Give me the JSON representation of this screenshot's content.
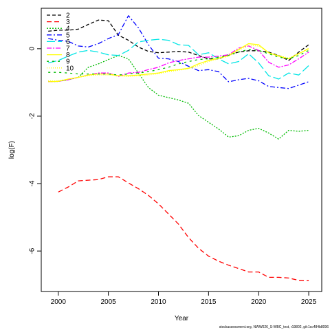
{
  "chart_data": {
    "type": "line",
    "title": "",
    "xlabel": "Year",
    "ylabel": "log(F)",
    "xlim": [
      1998.3,
      2026.3
    ],
    "ylim": [
      -7.2,
      1.2
    ],
    "xticks": [
      2000,
      2005,
      2010,
      2015,
      2020,
      2025
    ],
    "yticks": [
      0,
      -2,
      -4,
      -6
    ],
    "legend_position": "top-left",
    "grid": false,
    "series": [
      {
        "name": "2",
        "color": "#000000",
        "dash": "5,3",
        "x": [
          1999,
          2000,
          2001,
          2002,
          2003,
          2004,
          2005,
          2006,
          2007,
          2008,
          2009,
          2010,
          2011,
          2012,
          2013,
          2014,
          2015,
          2016,
          2017,
          2018,
          2019,
          2020,
          2021,
          2022,
          2023,
          2024,
          2025
        ],
        "y": [
          0.52,
          0.55,
          0.55,
          0.58,
          0.72,
          0.85,
          0.83,
          0.4,
          0.25,
          0.05,
          -0.08,
          -0.12,
          -0.1,
          -0.08,
          -0.1,
          -0.2,
          -0.3,
          -0.3,
          -0.18,
          -0.1,
          -0.06,
          -0.06,
          -0.1,
          -0.2,
          -0.35,
          -0.1,
          0.12
        ]
      },
      {
        "name": "3",
        "color": "#ff0000",
        "dash": "7,4",
        "x": [
          2000,
          2001,
          2002,
          2003,
          2004,
          2005,
          2006,
          2007,
          2008,
          2009,
          2010,
          2011,
          2012,
          2013,
          2014,
          2015,
          2016,
          2017,
          2018,
          2019,
          2020,
          2021,
          2022,
          2023,
          2024,
          2025
        ],
        "y": [
          -4.25,
          -4.1,
          -3.92,
          -3.9,
          -3.88,
          -3.8,
          -3.8,
          -3.98,
          -4.15,
          -4.35,
          -4.6,
          -4.9,
          -5.2,
          -5.6,
          -5.92,
          -6.15,
          -6.3,
          -6.42,
          -6.52,
          -6.62,
          -6.62,
          -6.78,
          -6.78,
          -6.8,
          -6.87,
          -6.88
        ]
      },
      {
        "name": "4",
        "color": "#00bb00",
        "dash": "2,2",
        "x": [
          1999,
          2000,
          2001,
          2002,
          2003,
          2004,
          2005,
          2006,
          2007,
          2008,
          2009,
          2010,
          2011,
          2012,
          2013,
          2014,
          2015,
          2016,
          2017,
          2018,
          2019,
          2020,
          2021,
          2022,
          2023,
          2024,
          2025
        ],
        "y": [
          -0.98,
          -0.97,
          -0.92,
          -0.85,
          -0.55,
          -0.45,
          -0.32,
          -0.2,
          -0.3,
          -0.72,
          -1.15,
          -1.38,
          -1.45,
          -1.52,
          -1.62,
          -1.98,
          -2.18,
          -2.38,
          -2.62,
          -2.58,
          -2.42,
          -2.36,
          -2.5,
          -2.68,
          -2.42,
          -2.45,
          -2.42
        ]
      },
      {
        "name": "5",
        "color": "#0000ff",
        "dash": "7,3,2,3",
        "x": [
          1999,
          2000,
          2001,
          2002,
          2003,
          2004,
          2005,
          2006,
          2007,
          2008,
          2009,
          2010,
          2011,
          2012,
          2013,
          2014,
          2015,
          2016,
          2017,
          2018,
          2019,
          2020,
          2021,
          2022,
          2023,
          2024,
          2025
        ],
        "y": [
          0.3,
          0.25,
          0.22,
          0.08,
          0.05,
          0.15,
          0.3,
          0.42,
          0.98,
          0.62,
          0.12,
          -0.28,
          -0.3,
          -0.38,
          -0.52,
          -0.65,
          -0.62,
          -0.68,
          -0.98,
          -0.92,
          -0.88,
          -0.95,
          -1.12,
          -1.15,
          -1.18,
          -1.08,
          -0.98
        ]
      },
      {
        "name": "6",
        "color": "#00e5e5",
        "dash": "12,4",
        "x": [
          1999,
          2000,
          2001,
          2002,
          2003,
          2004,
          2005,
          2006,
          2007,
          2008,
          2009,
          2010,
          2011,
          2012,
          2013,
          2014,
          2015,
          2016,
          2017,
          2018,
          2019,
          2020,
          2021,
          2022,
          2023,
          2024,
          2025
        ],
        "y": [
          -0.42,
          -0.35,
          -0.22,
          -0.1,
          -0.05,
          -0.1,
          -0.18,
          -0.2,
          -0.05,
          0.2,
          0.25,
          0.28,
          0.25,
          0.12,
          0.1,
          -0.18,
          -0.12,
          -0.3,
          -0.45,
          -0.38,
          -0.15,
          -0.42,
          -0.8,
          -0.9,
          -0.72,
          -0.78,
          -0.5
        ]
      },
      {
        "name": "7",
        "color": "#ff00ff",
        "dash": "7,2,2,2",
        "x": [
          1999,
          2000,
          2001,
          2002,
          2003,
          2004,
          2005,
          2006,
          2007,
          2008,
          2009,
          2010,
          2011,
          2012,
          2013,
          2014,
          2015,
          2016,
          2017,
          2018,
          2019,
          2020,
          2021,
          2022,
          2023,
          2024,
          2025
        ],
        "y": [
          -0.98,
          -0.97,
          -0.92,
          -0.85,
          -0.78,
          -0.72,
          -0.72,
          -0.82,
          -0.72,
          -0.7,
          -0.62,
          -0.55,
          -0.42,
          -0.35,
          -0.3,
          -0.25,
          -0.25,
          -0.22,
          -0.18,
          0.02,
          0.08,
          -0.05,
          -0.4,
          -0.55,
          -0.48,
          -0.3,
          -0.1
        ]
      },
      {
        "name": "8",
        "color": "#ffff00",
        "dash": "",
        "x": [
          1999,
          2000,
          2001,
          2002,
          2003,
          2004,
          2005,
          2006,
          2007,
          2008,
          2009,
          2010,
          2011,
          2012,
          2013,
          2014,
          2015,
          2016,
          2017,
          2018,
          2019,
          2020,
          2021,
          2022,
          2023,
          2024,
          2025
        ],
        "y": [
          -0.98,
          -0.97,
          -0.9,
          -0.85,
          -0.78,
          -0.75,
          -0.75,
          -0.8,
          -0.8,
          -0.78,
          -0.75,
          -0.72,
          -0.65,
          -0.62,
          -0.58,
          -0.45,
          -0.35,
          -0.28,
          -0.2,
          -0.02,
          0.15,
          0.12,
          -0.12,
          -0.22,
          -0.3,
          -0.15,
          0.0
        ]
      },
      {
        "name": "9",
        "color": "#00bb00",
        "dash": "3,5",
        "x": [
          1999,
          2000,
          2001,
          2002,
          2003,
          2004,
          2005,
          2006,
          2007,
          2008,
          2009,
          2010,
          2011,
          2012,
          2013,
          2014,
          2015,
          2016,
          2017,
          2018,
          2019,
          2020,
          2021,
          2022,
          2023,
          2024,
          2025
        ],
        "y": [
          -0.7,
          -0.7,
          -0.72,
          -0.75,
          -0.75,
          -0.75,
          -0.75,
          -0.78,
          -0.75,
          -0.72,
          -0.68,
          -0.62,
          -0.55,
          -0.45,
          -0.38,
          -0.32,
          -0.3,
          -0.25,
          -0.2,
          -0.1,
          -0.02,
          -0.05,
          -0.15,
          -0.25,
          -0.3,
          -0.2,
          -0.05
        ]
      },
      {
        "name": "10",
        "color": "#ffff00",
        "dash": "1,2",
        "x": [
          1999,
          2000,
          2001,
          2002,
          2003,
          2004,
          2005,
          2006,
          2007,
          2008,
          2009,
          2010,
          2011,
          2012,
          2013,
          2014,
          2015,
          2016,
          2017,
          2018,
          2019,
          2020,
          2021,
          2022,
          2023,
          2024,
          2025
        ],
        "y": [
          -0.95,
          -0.95,
          -0.9,
          -0.85,
          -0.8,
          -0.78,
          -0.78,
          -0.8,
          -0.82,
          -0.8,
          -0.78,
          -0.74,
          -0.68,
          -0.64,
          -0.6,
          -0.5,
          -0.38,
          -0.3,
          -0.22,
          -0.05,
          0.1,
          0.08,
          -0.12,
          -0.2,
          -0.28,
          -0.14,
          0.02
        ]
      }
    ]
  },
  "footnote": "stockassessment.org, NWW026_S-WBC_test, r19802, git:1cc484b8096"
}
